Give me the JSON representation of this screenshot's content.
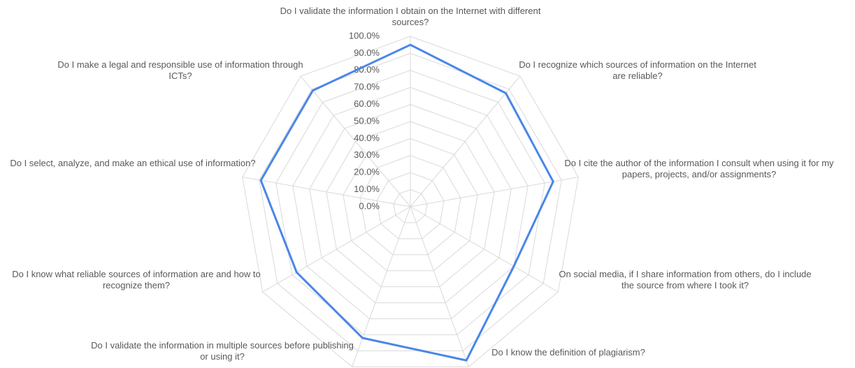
{
  "chart_data": {
    "type": "radar",
    "categories": [
      "Do I validate the information I obtain on the Internet with different sources?",
      "Do I recognize which sources of information on the Internet are reliable?",
      "Do I cite the author of the information I consult when using it for my papers, projects, and/or assignments?",
      "On social media, if I share information from others, do I include the source from where I took it?",
      "Do I know the definition of plagiarism?",
      "Do I validate the information in multiple sources before publishing or using it?",
      "Do I know what reliable sources of information are and how to recognize them?",
      "Do I select, analyze, and make an ethical use of information?",
      "Do I make a legal and responsible use of information through ICTs?"
    ],
    "series": [
      {
        "color": "#4a86e8",
        "values": [
          95,
          87,
          85,
          70,
          96,
          82,
          77,
          89,
          89
        ]
      }
    ],
    "ylim": [
      0,
      100
    ],
    "yticks": [
      {
        "value": 0,
        "label": "0.0%"
      },
      {
        "value": 10,
        "label": "10.0%"
      },
      {
        "value": 20,
        "label": "20.0%"
      },
      {
        "value": 30,
        "label": "30.0%"
      },
      {
        "value": 40,
        "label": "40.0%"
      },
      {
        "value": 50,
        "label": "50.0%"
      },
      {
        "value": 60,
        "label": "60.0%"
      },
      {
        "value": 70,
        "label": "70.0%"
      },
      {
        "value": 80,
        "label": "80.0%"
      },
      {
        "value": 90,
        "label": "90.0%"
      },
      {
        "value": 100,
        "label": "100.0%"
      }
    ],
    "grid": true
  }
}
